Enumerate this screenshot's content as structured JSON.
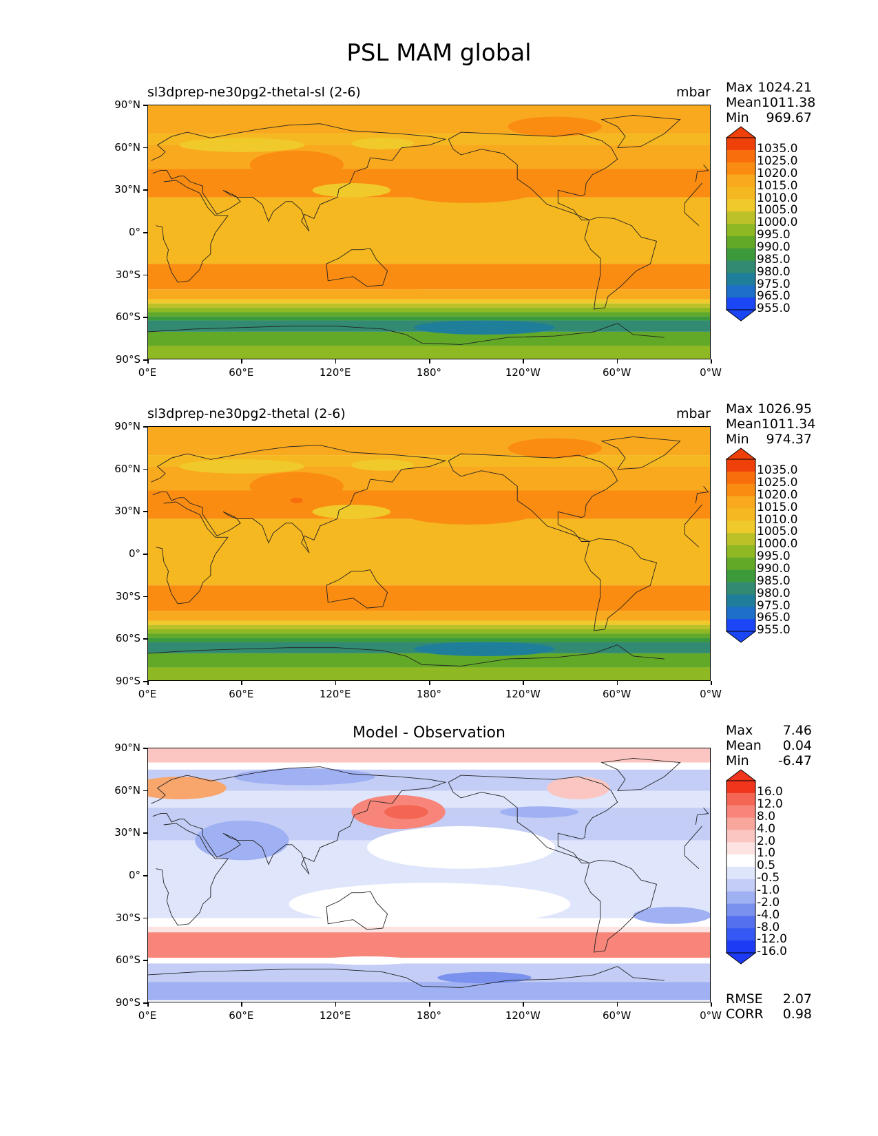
{
  "title": "PSL MAM global",
  "panels": [
    {
      "left_title": "sl3dprep-ne30pg2-thetal-sl (2-6)",
      "right_title": "mbar",
      "center_title": "",
      "stats": [
        [
          "Max",
          "1024.21"
        ],
        [
          "Mean",
          "1011.38"
        ],
        [
          "Min",
          "969.67"
        ]
      ],
      "colorbar_labels": [
        "1035.0",
        "1025.0",
        "1020.0",
        "1015.0",
        "1010.0",
        "1005.0",
        "1000.0",
        "995.0",
        "990.0",
        "985.0",
        "980.0",
        "975.0",
        "965.0",
        "955.0"
      ],
      "extra": []
    },
    {
      "left_title": "sl3dprep-ne30pg2-thetal (2-6)",
      "right_title": "mbar",
      "center_title": "",
      "stats": [
        [
          "Max",
          "1026.95"
        ],
        [
          "Mean",
          "1011.34"
        ],
        [
          "Min",
          "974.37"
        ]
      ],
      "colorbar_labels": [
        "1035.0",
        "1025.0",
        "1020.0",
        "1015.0",
        "1010.0",
        "1005.0",
        "1000.0",
        "995.0",
        "990.0",
        "985.0",
        "980.0",
        "975.0",
        "965.0",
        "955.0"
      ],
      "extra": []
    },
    {
      "left_title": "",
      "right_title": "",
      "center_title": "Model - Observation",
      "stats": [
        [
          "Max",
          "7.46"
        ],
        [
          "Mean",
          "0.04"
        ],
        [
          "Min",
          "-6.47"
        ]
      ],
      "colorbar_labels": [
        "16.0",
        "12.0",
        "8.0",
        "4.0",
        "2.0",
        "1.0",
        "0.5",
        "-0.5",
        "-1.0",
        "-2.0",
        "-4.0",
        "-8.0",
        "-12.0",
        "-16.0"
      ],
      "extra": [
        [
          "RMSE",
          "2.07"
        ],
        [
          "CORR",
          "0.98"
        ]
      ]
    }
  ],
  "axes": {
    "lat_ticks": [
      "90°N",
      "60°N",
      "30°N",
      "0°",
      "30°S",
      "60°S",
      "90°S"
    ],
    "lon_ticks": [
      "0°E",
      "60°E",
      "120°E",
      "180°",
      "120°W",
      "60°W",
      "0°W"
    ]
  },
  "chart_data": [
    {
      "type": "heatmap",
      "title": "sl3dprep-ne30pg2-thetal-sl (2-6)",
      "units": "mbar",
      "colorbar_levels": [
        955,
        965,
        975,
        980,
        985,
        990,
        995,
        1000,
        1005,
        1010,
        1015,
        1020,
        1025,
        1035
      ],
      "colors": [
        "#1a46f5",
        "#1d6fc8",
        "#1f7f9a",
        "#328a72",
        "#3d9a3a",
        "#62a928",
        "#8fb923",
        "#bcc128",
        "#f0ca2a",
        "#f5b820",
        "#f9a91e",
        "#fa8c12",
        "#f86e0c",
        "#f0400a"
      ],
      "lat_range": [
        -90,
        90
      ],
      "lon_range": [
        0,
        360
      ],
      "max": 1024.21,
      "mean": 1011.38,
      "min": 969.67
    },
    {
      "type": "heatmap",
      "title": "sl3dprep-ne30pg2-thetal (2-6)",
      "units": "mbar",
      "colorbar_levels": [
        955,
        965,
        975,
        980,
        985,
        990,
        995,
        1000,
        1005,
        1010,
        1015,
        1020,
        1025,
        1035
      ],
      "lat_range": [
        -90,
        90
      ],
      "lon_range": [
        0,
        360
      ],
      "max": 1026.95,
      "mean": 1011.34,
      "min": 974.37
    },
    {
      "type": "heatmap",
      "title": "Model - Observation",
      "colorbar_levels": [
        -16,
        -12,
        -8,
        -4,
        -2,
        -1,
        -0.5,
        0.5,
        1,
        2,
        4,
        8,
        12,
        16
      ],
      "colors": [
        "#1d3bf5",
        "#3358f3",
        "#5470ee",
        "#7a92ee",
        "#9fb1f2",
        "#c3cdf6",
        "#dfe5fb",
        "#ffffff",
        "#fde3e1",
        "#fbc6c1",
        "#f9a69d",
        "#f7857a",
        "#f46653",
        "#f0351c"
      ],
      "lat_range": [
        -90,
        90
      ],
      "lon_range": [
        0,
        360
      ],
      "max": 7.46,
      "mean": 0.04,
      "min": -6.47,
      "rmse": 2.07,
      "corr": 0.98
    }
  ]
}
